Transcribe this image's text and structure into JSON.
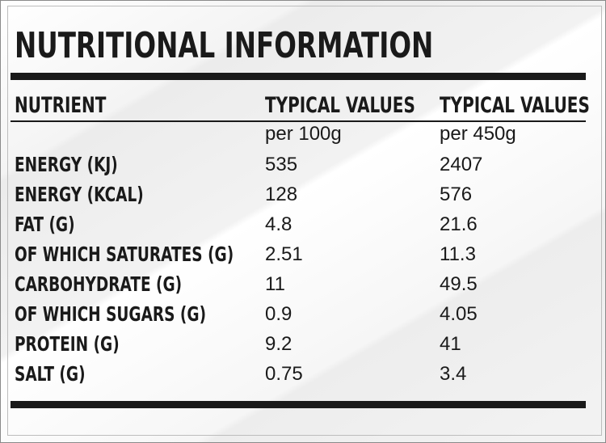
{
  "title": "NUTRITIONAL INFORMATION",
  "columns": {
    "nutrient": "NUTRIENT",
    "typical_100": "TYPICAL VALUES",
    "typical_450": "TYPICAL VALUES",
    "unit_100": "per 100g",
    "unit_450": "per 450g"
  },
  "rows": [
    {
      "name": "ENERGY (KJ)",
      "per100": "535",
      "per450": "2407"
    },
    {
      "name": "ENERGY (KCAL)",
      "per100": "128",
      "per450": "576"
    },
    {
      "name": "FAT (G)",
      "per100": "4.8",
      "per450": "21.6"
    },
    {
      "name": "OF WHICH SATURATES (G)",
      "per100": "2.51",
      "per450": "11.3"
    },
    {
      "name": "CARBOHYDRATE (G)",
      "per100": "11",
      "per450": "49.5"
    },
    {
      "name": "OF WHICH SUGARS (G)",
      "per100": "0.9",
      "per450": "4.05"
    },
    {
      "name": "PROTEIN (G)",
      "per100": "9.2",
      "per450": "41"
    },
    {
      "name": "SALT (G)",
      "per100": "0.75",
      "per450": "3.4"
    }
  ],
  "colors": {
    "text": "#1a1a1a",
    "background": "#f2f2f2"
  }
}
